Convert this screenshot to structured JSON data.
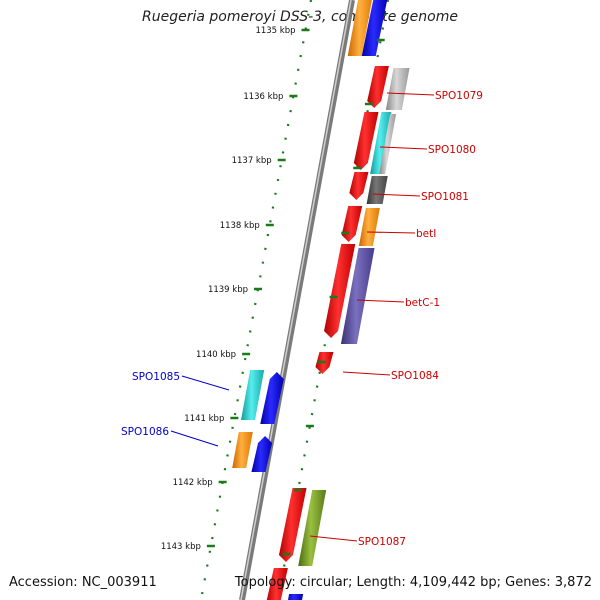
{
  "title": "Ruegeria pomeroyi DSS-3, complete genome",
  "footer": {
    "accession": "Accession: NC_003911",
    "topology": "Topology: circular; Length: 4,109,442 bp; Genes: 3,872"
  },
  "scale_labels": [
    "1135 kbp",
    "1136 kbp",
    "1137 kbp",
    "1138 kbp",
    "1139 kbp",
    "1140 kbp",
    "1141 kbp",
    "1142 kbp",
    "1143 kbp"
  ],
  "gene_labels": [
    {
      "text": "SPO1079",
      "color": "#cc0000"
    },
    {
      "text": "SPO1080",
      "color": "#cc0000"
    },
    {
      "text": "SPO1081",
      "color": "#cc0000"
    },
    {
      "text": "betI",
      "color": "#cc0000"
    },
    {
      "text": "betC-1",
      "color": "#cc0000"
    },
    {
      "text": "SPO1084",
      "color": "#cc0000"
    },
    {
      "text": "SPO1085",
      "color": "#0000cc"
    },
    {
      "text": "SPO1086",
      "color": "#0000cc"
    },
    {
      "text": "SPO1087",
      "color": "#cc0000"
    }
  ],
  "colors": {
    "backbone": "#8a8a8a",
    "ticks": "#1a7a1a",
    "red": "#ff0000",
    "blue": "#0000ff",
    "cyan": "#22cccc",
    "orange": "#ff9900",
    "gray": "#aaaaaa",
    "darkgray": "#555555",
    "purple": "#5a4f9a",
    "olive": "#6b8e23"
  }
}
